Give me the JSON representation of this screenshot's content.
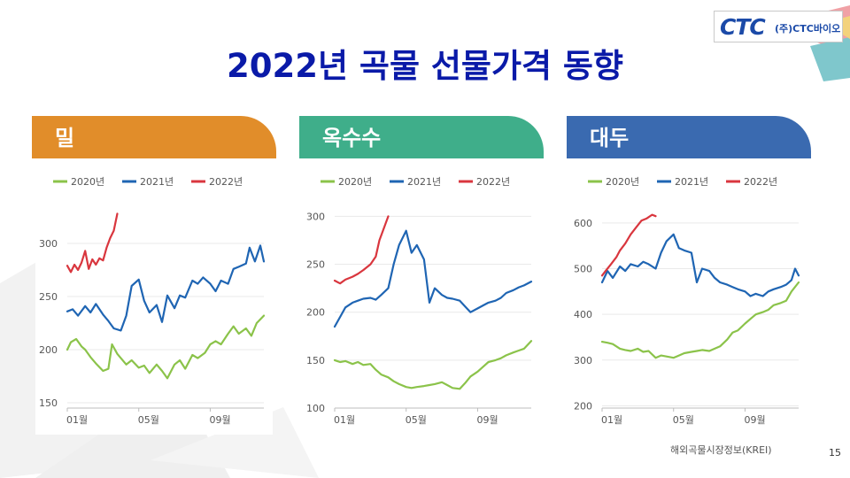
{
  "title": "2022년 곡물 선물가격 동향",
  "logo": {
    "mark": "CTC",
    "text": "(주)CTC바이오"
  },
  "source": "해외곡물시장정보(KREI)",
  "page_number": "15",
  "legend_labels": [
    "2020년",
    "2021년",
    "2022년"
  ],
  "colors": {
    "y2020": "#8bc34a",
    "y2021": "#1f65b3",
    "y2022": "#d9363e"
  },
  "chart_data": [
    {
      "type": "line",
      "title": "밀",
      "header_color": "#e18d2a",
      "x_ticks": [
        "01월",
        "05월",
        "09월"
      ],
      "y_ticks": [
        150,
        200,
        250,
        300
      ],
      "ylim": [
        145,
        330
      ],
      "series": [
        {
          "name": "2020년",
          "color": "#8bc34a",
          "x": [
            1,
            1.2,
            1.5,
            1.8,
            2,
            2.3,
            2.6,
            3,
            3.3,
            3.5,
            3.8,
            4,
            4.3,
            4.6,
            5,
            5.3,
            5.6,
            6,
            6.3,
            6.6,
            7,
            7.3,
            7.6,
            8,
            8.3,
            8.7,
            9,
            9.3,
            9.6,
            10,
            10.3,
            10.6,
            11,
            11.3,
            11.6,
            12
          ],
          "values": [
            200,
            207,
            210,
            203,
            200,
            193,
            187,
            180,
            182,
            205,
            196,
            192,
            186,
            190,
            183,
            185,
            178,
            186,
            180,
            173,
            186,
            190,
            182,
            195,
            192,
            197,
            205,
            208,
            205,
            215,
            222,
            215,
            220,
            213,
            225,
            232
          ]
        },
        {
          "name": "2021년",
          "color": "#1f65b3",
          "x": [
            1,
            1.3,
            1.6,
            2,
            2.3,
            2.6,
            3,
            3.3,
            3.6,
            4,
            4.3,
            4.6,
            5,
            5.3,
            5.6,
            6,
            6.3,
            6.6,
            7,
            7.3,
            7.6,
            8,
            8.3,
            8.6,
            9,
            9.3,
            9.6,
            10,
            10.3,
            10.6,
            11,
            11.2,
            11.5,
            11.8,
            12
          ],
          "values": [
            236,
            238,
            232,
            241,
            235,
            243,
            233,
            227,
            220,
            218,
            232,
            260,
            266,
            246,
            235,
            242,
            226,
            251,
            239,
            251,
            249,
            265,
            262,
            268,
            262,
            255,
            265,
            262,
            276,
            278,
            281,
            296,
            283,
            298,
            283
          ]
        },
        {
          "name": "2022년",
          "color": "#d9363e",
          "x": [
            1,
            1.2,
            1.4,
            1.6,
            1.8,
            2,
            2.2,
            2.4,
            2.6,
            2.8,
            3,
            3.2,
            3.4,
            3.6,
            3.8
          ],
          "values": [
            279,
            273,
            280,
            275,
            282,
            293,
            276,
            285,
            280,
            286,
            284,
            296,
            305,
            312,
            328
          ]
        }
      ]
    },
    {
      "type": "line",
      "title": "옥수수",
      "header_color": "#3fae8a",
      "x_ticks": [
        "01월",
        "05월",
        "09월"
      ],
      "y_ticks": [
        100,
        150,
        200,
        250,
        300
      ],
      "ylim": [
        100,
        305
      ],
      "series": [
        {
          "name": "2020년",
          "color": "#8bc34a",
          "x": [
            1,
            1.3,
            1.6,
            2,
            2.3,
            2.6,
            3,
            3.3,
            3.6,
            4,
            4.3,
            4.6,
            5,
            5.3,
            5.6,
            6,
            6.3,
            6.6,
            7,
            7.3,
            7.6,
            8,
            8.3,
            8.6,
            9,
            9.3,
            9.6,
            10,
            10.3,
            10.6,
            11,
            11.3,
            11.6,
            12
          ],
          "values": [
            150,
            148,
            149,
            146,
            148,
            145,
            146,
            140,
            135,
            132,
            128,
            125,
            122,
            121,
            122,
            123,
            124,
            125,
            127,
            124,
            121,
            120,
            126,
            133,
            138,
            143,
            148,
            150,
            152,
            155,
            158,
            160,
            162,
            170
          ]
        },
        {
          "name": "2021년",
          "color": "#1f65b3",
          "x": [
            1,
            1.3,
            1.6,
            2,
            2.3,
            2.6,
            3,
            3.3,
            3.6,
            4,
            4.3,
            4.6,
            5,
            5.3,
            5.6,
            6,
            6.3,
            6.6,
            7,
            7.3,
            7.6,
            8,
            8.3,
            8.6,
            9,
            9.3,
            9.6,
            10,
            10.3,
            10.6,
            11,
            11.3,
            11.6,
            12
          ],
          "values": [
            185,
            195,
            205,
            210,
            212,
            214,
            215,
            213,
            218,
            225,
            250,
            270,
            285,
            262,
            270,
            255,
            210,
            225,
            218,
            215,
            214,
            212,
            206,
            200,
            204,
            207,
            210,
            212,
            215,
            220,
            223,
            226,
            228,
            232
          ]
        },
        {
          "name": "2022年",
          "color": "#d9363e",
          "x": [
            1,
            1.3,
            1.6,
            2,
            2.3,
            2.6,
            3,
            3.3,
            3.5,
            3.8,
            4
          ],
          "values": [
            233,
            230,
            234,
            237,
            240,
            244,
            250,
            258,
            275,
            290,
            300
          ]
        }
      ]
    },
    {
      "type": "line",
      "title": "대두",
      "header_color": "#3a6ab0",
      "x_ticks": [
        "01월",
        "05월",
        "09월"
      ],
      "y_ticks": [
        200,
        300,
        400,
        500,
        600
      ],
      "ylim": [
        195,
        625
      ],
      "series": [
        {
          "name": "2020년",
          "color": "#8bc34a",
          "x": [
            1,
            1.3,
            1.6,
            2,
            2.3,
            2.6,
            3,
            3.3,
            3.6,
            4,
            4.3,
            4.6,
            5,
            5.3,
            5.6,
            6,
            6.3,
            6.6,
            7,
            7.3,
            7.6,
            8,
            8.3,
            8.6,
            9,
            9.3,
            9.6,
            10,
            10.3,
            10.6,
            11,
            11.3,
            11.6,
            12
          ],
          "values": [
            340,
            338,
            335,
            325,
            322,
            320,
            325,
            318,
            320,
            305,
            310,
            308,
            305,
            310,
            315,
            318,
            320,
            322,
            320,
            325,
            330,
            345,
            360,
            365,
            380,
            390,
            400,
            405,
            410,
            420,
            425,
            430,
            450,
            470
          ]
        },
        {
          "name": "2021年",
          "color": "#1f65b3",
          "x": [
            1,
            1.3,
            1.6,
            2,
            2.3,
            2.6,
            3,
            3.3,
            3.6,
            4,
            4.3,
            4.6,
            5,
            5.3,
            5.6,
            6,
            6.3,
            6.6,
            7,
            7.3,
            7.6,
            8,
            8.3,
            8.6,
            9,
            9.3,
            9.6,
            10,
            10.3,
            10.6,
            11,
            11.3,
            11.6,
            11.8,
            12
          ],
          "values": [
            470,
            495,
            480,
            505,
            495,
            510,
            505,
            515,
            510,
            500,
            535,
            560,
            575,
            545,
            540,
            535,
            470,
            500,
            495,
            480,
            470,
            465,
            460,
            455,
            450,
            440,
            445,
            440,
            450,
            455,
            460,
            465,
            475,
            500,
            485
          ]
        },
        {
          "name": "2022年",
          "color": "#d9363e",
          "x": [
            1,
            1.2,
            1.5,
            1.8,
            2,
            2.3,
            2.6,
            2.9,
            3.2,
            3.5,
            3.8,
            4
          ],
          "values": [
            485,
            495,
            510,
            525,
            540,
            555,
            575,
            590,
            605,
            610,
            618,
            615
          ]
        }
      ]
    }
  ]
}
